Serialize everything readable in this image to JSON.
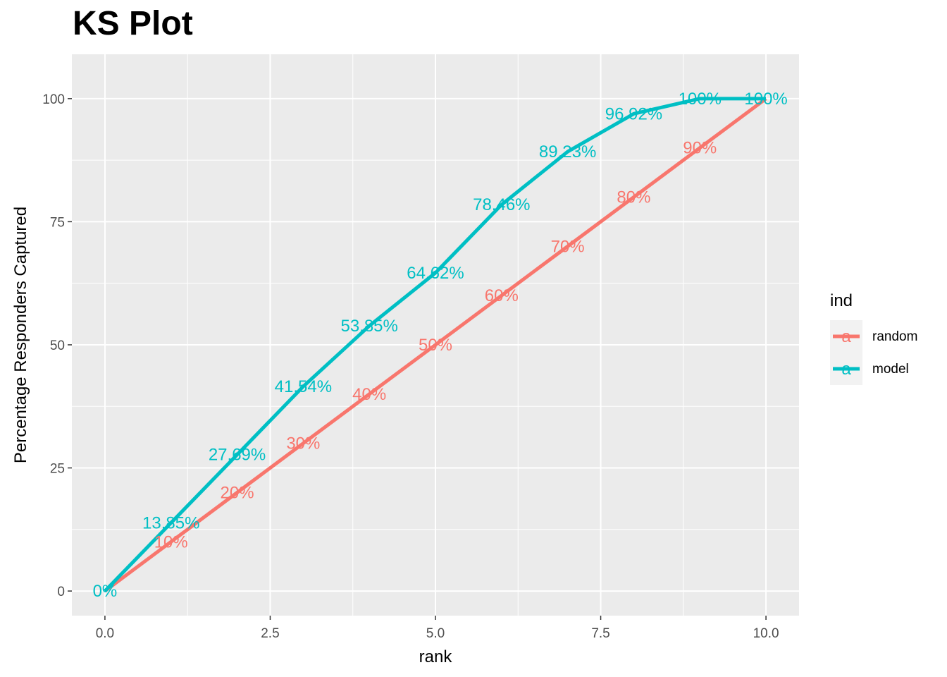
{
  "chart_data": {
    "type": "line",
    "title": "KS Plot",
    "xlabel": "rank",
    "ylabel": "Percentage Responders Captured",
    "xlim": [
      -0.5,
      10.5
    ],
    "ylim": [
      -5,
      109
    ],
    "x_ticks": [
      0,
      2.5,
      5,
      7.5,
      10
    ],
    "x_tick_labels": [
      "0.0",
      "2.5",
      "5.0",
      "7.5",
      "10.0"
    ],
    "y_ticks": [
      0,
      25,
      50,
      75,
      100
    ],
    "y_tick_labels": [
      "0",
      "25",
      "50",
      "75",
      "100"
    ],
    "x": [
      0,
      1,
      2,
      3,
      4,
      5,
      6,
      7,
      8,
      9,
      10
    ],
    "grid": true,
    "legend": {
      "title": "ind",
      "position": "right",
      "entries": [
        "random",
        "model"
      ],
      "key_glyph": "a"
    },
    "series": [
      {
        "name": "random",
        "color": "#F8766D",
        "values": [
          0,
          10,
          20,
          30,
          40,
          50,
          60,
          70,
          80,
          90,
          100
        ],
        "labels": [
          "",
          "10%",
          "20%",
          "30%",
          "40%",
          "50%",
          "60%",
          "70%",
          "80%",
          "90%",
          ""
        ]
      },
      {
        "name": "model",
        "color": "#00BFC4",
        "values": [
          0,
          13.85,
          27.69,
          41.54,
          53.85,
          64.62,
          78.46,
          89.23,
          96.92,
          100,
          100
        ],
        "labels": [
          "0%",
          "13.85%",
          "27.69%",
          "41.54%",
          "53.85%",
          "64.62%",
          "78.46%",
          "89.23%",
          "96.92%",
          "100%",
          "100%"
        ]
      }
    ]
  }
}
